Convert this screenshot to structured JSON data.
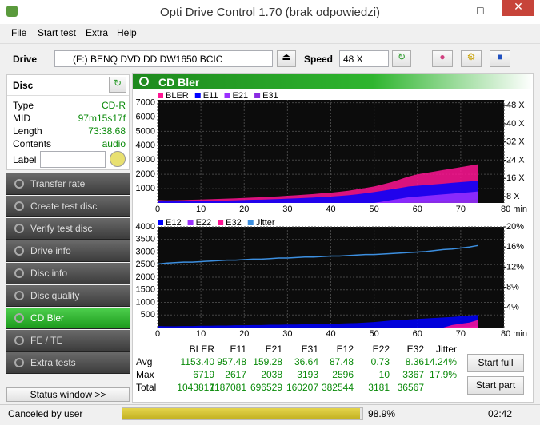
{
  "window": {
    "title": "Opti Drive Control 1.70 (brak odpowiedzi)"
  },
  "menu": [
    "File",
    "Start test",
    "Extra",
    "Help"
  ],
  "toolbar": {
    "drive_label": "Drive",
    "drive": "(F:)  BENQ DVD DD DW1650 BCIC",
    "speed_label": "Speed",
    "speed": "48 X"
  },
  "disc": {
    "header": "Disc",
    "rows": [
      [
        "Type",
        "CD-R"
      ],
      [
        "MID",
        "97m15s17f"
      ],
      [
        "Length",
        "73:38.68"
      ],
      [
        "Contents",
        "audio"
      ]
    ],
    "label": "Label"
  },
  "nav": [
    "Transfer rate",
    "Create test disc",
    "Verify test disc",
    "Drive info",
    "Disc info",
    "Disc quality",
    "CD Bler",
    "FE / TE",
    "Extra tests"
  ],
  "nav_active": 6,
  "status_window": "Status window >>",
  "panel_title": "CD Bler",
  "chart_data": [
    {
      "type": "area",
      "xlim": [
        0,
        80
      ],
      "xticks": [
        0,
        10,
        20,
        30,
        40,
        50,
        60,
        70,
        {
          "value": 80,
          "label": "80 min"
        }
      ],
      "ylim": [
        0,
        7200
      ],
      "yticks": [
        1000,
        2000,
        3000,
        4000,
        5000,
        6000,
        7000
      ],
      "y2lim": [
        5.2,
        50.5
      ],
      "y2ticks": [
        {
          "value": 8,
          "label": "8 X"
        },
        {
          "value": 16,
          "label": "16 X"
        },
        {
          "value": 24,
          "label": "24 X"
        },
        {
          "value": 32,
          "label": "32 X"
        },
        {
          "value": 40,
          "label": "40 X"
        },
        {
          "value": 48,
          "label": "48 X"
        }
      ],
      "grid": true,
      "x": [
        0,
        2,
        4,
        6,
        8,
        10,
        12,
        14,
        16,
        18,
        20,
        22,
        24,
        26,
        28,
        30,
        32,
        34,
        36,
        38,
        40,
        42,
        44,
        46,
        48,
        50,
        52,
        54,
        56,
        58,
        60,
        62,
        64,
        66,
        68,
        70,
        72,
        74
      ],
      "series": [
        {
          "name": "BLER",
          "color": "#ff1493",
          "values": [
            200,
            180,
            190,
            200,
            220,
            240,
            260,
            280,
            300,
            320,
            350,
            380,
            400,
            430,
            460,
            500,
            540,
            580,
            620,
            680,
            720,
            780,
            850,
            950,
            1050,
            1150,
            1300,
            1450,
            1650,
            1850,
            2000,
            2100,
            2200,
            2300,
            2400,
            2500,
            2600,
            2700
          ]
        },
        {
          "name": "E11",
          "color": "#0000ff",
          "values": [
            120,
            110,
            115,
            120,
            130,
            140,
            150,
            160,
            170,
            180,
            200,
            220,
            230,
            250,
            270,
            300,
            320,
            350,
            380,
            420,
            450,
            490,
            540,
            600,
            680,
            760,
            850,
            950,
            1050,
            1150,
            1200,
            1250,
            1300,
            1350,
            1400,
            1450,
            1500,
            1550
          ]
        },
        {
          "name": "E21",
          "color": "#9b30ff",
          "values": [
            0,
            0,
            0,
            0,
            0,
            0,
            0,
            0,
            0,
            0,
            0,
            0,
            0,
            0,
            0,
            0,
            0,
            0,
            0,
            0,
            0,
            0,
            0,
            0,
            0,
            0,
            100,
            200,
            300,
            400,
            450,
            500,
            550,
            600,
            650,
            700,
            750,
            800
          ]
        },
        {
          "name": "E31",
          "color": "#8a2be2",
          "values": [
            0,
            0,
            0,
            0,
            0,
            0,
            0,
            0,
            0,
            0,
            0,
            0,
            0,
            0,
            0,
            0,
            0,
            0,
            0,
            0,
            0,
            0,
            0,
            0,
            0,
            0,
            0,
            0,
            0,
            50,
            80,
            100,
            120,
            150,
            180,
            200,
            220,
            250
          ]
        }
      ]
    },
    {
      "type": "area",
      "xlim": [
        0,
        80
      ],
      "xticks": [
        0,
        10,
        20,
        30,
        40,
        50,
        60,
        70,
        {
          "value": 80,
          "label": "80 min"
        }
      ],
      "ylim": [
        0,
        4000
      ],
      "yticks": [
        500,
        1000,
        1500,
        2000,
        2500,
        3000,
        3500,
        4000
      ],
      "y2lim": [
        0,
        20
      ],
      "y2ticks": [
        {
          "value": 4,
          "label": "4%"
        },
        {
          "value": 8,
          "label": "8%"
        },
        {
          "value": 12,
          "label": "12%"
        },
        {
          "value": 16,
          "label": "16%"
        },
        {
          "value": 20,
          "label": "20%"
        }
      ],
      "grid": true,
      "x": [
        0,
        2,
        4,
        6,
        8,
        10,
        12,
        14,
        16,
        18,
        20,
        22,
        24,
        26,
        28,
        30,
        32,
        34,
        36,
        38,
        40,
        42,
        44,
        46,
        48,
        50,
        52,
        54,
        56,
        58,
        60,
        62,
        64,
        66,
        68,
        70,
        72,
        74
      ],
      "series": [
        {
          "name": "E12",
          "color": "#0000ff",
          "values": [
            60,
            50,
            50,
            60,
            60,
            70,
            70,
            80,
            80,
            90,
            90,
            100,
            100,
            110,
            110,
            120,
            120,
            130,
            130,
            140,
            150,
            160,
            170,
            180,
            200,
            220,
            250,
            280,
            300,
            320,
            340,
            360,
            380,
            400,
            420,
            450,
            480,
            500
          ]
        },
        {
          "name": "E22",
          "color": "#9b30ff",
          "values": [
            0,
            0,
            0,
            0,
            0,
            0,
            0,
            0,
            0,
            0,
            0,
            0,
            0,
            0,
            0,
            0,
            0,
            0,
            0,
            0,
            0,
            0,
            0,
            0,
            0,
            0,
            0,
            0,
            0,
            0,
            0,
            0,
            0,
            0,
            20,
            30,
            40,
            50
          ]
        },
        {
          "name": "E32",
          "color": "#ff1493",
          "values": [
            0,
            0,
            0,
            0,
            0,
            0,
            0,
            0,
            0,
            0,
            0,
            0,
            0,
            0,
            0,
            0,
            0,
            0,
            0,
            0,
            0,
            0,
            0,
            0,
            0,
            0,
            0,
            0,
            0,
            0,
            0,
            0,
            0,
            0,
            100,
            150,
            200,
            300
          ]
        },
        {
          "name": "Jitter",
          "color": "#3c8fe0",
          "axis": "y2",
          "values": [
            12.6,
            12.8,
            12.9,
            13.0,
            13.0,
            13.1,
            13.2,
            13.3,
            13.4,
            13.4,
            13.5,
            13.6,
            13.6,
            13.7,
            13.8,
            13.8,
            13.9,
            14.0,
            14.0,
            14.1,
            14.2,
            14.2,
            14.3,
            14.4,
            14.5,
            14.5,
            14.6,
            14.7,
            14.8,
            14.9,
            15.0,
            15.1,
            15.3,
            15.5,
            15.6,
            15.8,
            16.0,
            16.3
          ]
        }
      ]
    }
  ],
  "stats": {
    "columns": [
      "BLER",
      "E11",
      "E21",
      "E31",
      "E12",
      "E22",
      "E32",
      "Jitter"
    ],
    "rows": [
      {
        "label": "Avg",
        "values": [
          "1153.40",
          "957.48",
          "159.28",
          "36.64",
          "87.48",
          "0.73",
          "8.36",
          "14.24%"
        ]
      },
      {
        "label": "Max",
        "values": [
          "6719",
          "2617",
          "2038",
          "3193",
          "2596",
          "10",
          "3367",
          "17.9%"
        ]
      },
      {
        "label": "Total",
        "values": [
          "1043817",
          "1187081",
          "696529",
          "160207",
          "382544",
          "3181",
          "36567",
          ""
        ]
      }
    ]
  },
  "buttons": [
    "Start full",
    "Start part"
  ],
  "status": {
    "message": "Canceled by user",
    "progress": 98.9,
    "progress_label": "98.9%",
    "time": "02:42"
  }
}
